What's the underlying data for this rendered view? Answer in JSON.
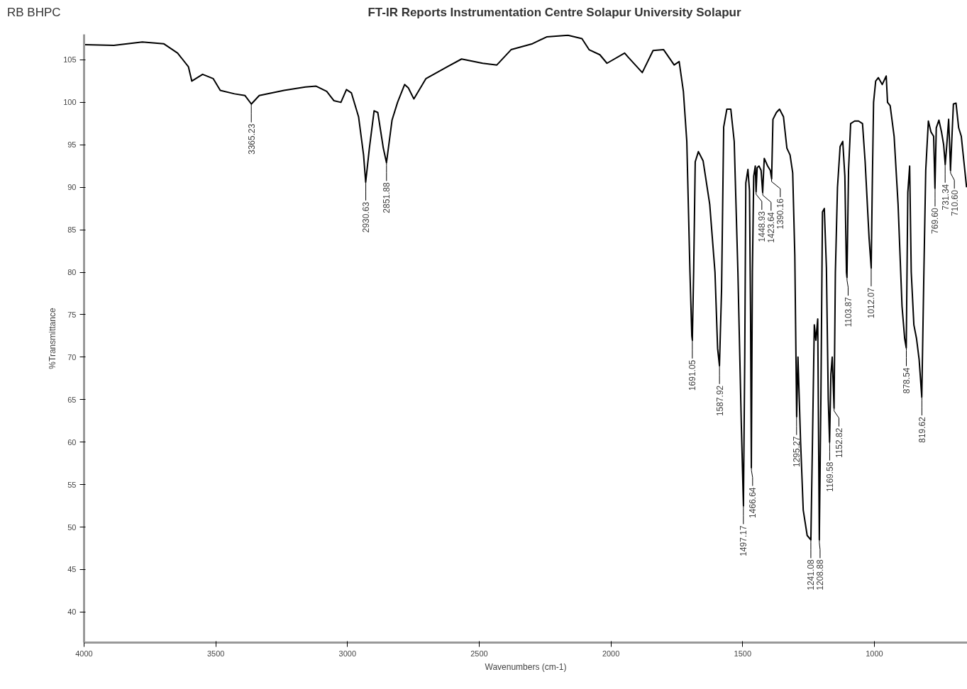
{
  "chart_data": {
    "type": "line",
    "title": "FT-IR Reports Instrumentation Centre Solapur University Solapur",
    "xlabel": "Wavenumbers (cm-1)",
    "ylabel": "%Transmittance",
    "xlim": [
      4000,
      647
    ],
    "ylim": [
      36.4,
      108
    ],
    "xticks": [
      4000,
      3500,
      3000,
      2500,
      2000,
      1500,
      1000
    ],
    "yticks": [
      40,
      45,
      50,
      55,
      60,
      65,
      70,
      75,
      80,
      85,
      90,
      95,
      100,
      105
    ],
    "grid": false,
    "marker": "none",
    "line_style": "solid",
    "series": [
      {
        "color": "#000000",
        "x": [
          4000,
          3887,
          3779,
          3698,
          3645,
          3604,
          3591,
          3550,
          3510,
          3483,
          3429,
          3389,
          3365,
          3335,
          3241,
          3160,
          3119,
          3079,
          3052,
          3025,
          3004,
          2985,
          2958,
          2939,
          2931,
          2917,
          2899,
          2885,
          2864,
          2852,
          2831,
          2810,
          2783,
          2769,
          2748,
          2702,
          2621,
          2567,
          2487,
          2433,
          2379,
          2298,
          2244,
          2163,
          2110,
          2083,
          2042,
          2015,
          1948,
          1934,
          1881,
          1840,
          1800,
          1760,
          1741,
          1725,
          1712,
          1700,
          1693,
          1691,
          1686,
          1680,
          1668,
          1650,
          1625,
          1605,
          1595,
          1588,
          1580,
          1572,
          1560,
          1545,
          1532,
          1518,
          1505,
          1497,
          1492,
          1488,
          1480,
          1474,
          1470,
          1467,
          1463,
          1458,
          1452,
          1449,
          1445,
          1438,
          1430,
          1424,
          1418,
          1405,
          1395,
          1390,
          1385,
          1372,
          1360,
          1345,
          1332,
          1320,
          1310,
          1302,
          1295,
          1290,
          1280,
          1270,
          1255,
          1241,
          1235,
          1228,
          1222,
          1215,
          1209,
          1203,
          1197,
          1190,
          1182,
          1175,
          1170,
          1165,
          1160,
          1153,
          1148,
          1140,
          1130,
          1120,
          1112,
          1106,
          1104,
          1098,
          1090,
          1075,
          1060,
          1045,
          1035,
          1020,
          1012,
          1008,
          1003,
          995,
          985,
          970,
          955,
          950,
          940,
          925,
          910,
          895,
          885,
          879,
          873,
          866,
          860,
          850,
          840,
          830,
          820,
          812,
          805,
          795,
          785,
          775,
          770,
          765,
          755,
          745,
          737,
          731,
          725,
          718,
          712,
          711,
          700,
          690,
          680,
          670,
          660,
          650
        ],
        "values": [
          106.8,
          106.7,
          107.1,
          106.9,
          105.8,
          104.2,
          102.5,
          103.3,
          102.8,
          101.4,
          101.0,
          100.8,
          99.8,
          100.8,
          101.4,
          101.8,
          101.9,
          101.3,
          100.2,
          100.0,
          101.5,
          101.1,
          98.3,
          93.8,
          90.6,
          94.6,
          99.0,
          98.8,
          94.6,
          92.9,
          97.9,
          100.0,
          102.1,
          101.7,
          100.4,
          102.8,
          104.2,
          105.1,
          104.6,
          104.4,
          106.2,
          106.9,
          107.7,
          107.9,
          107.5,
          106.2,
          105.6,
          104.6,
          105.8,
          105.3,
          103.5,
          106.1,
          106.2,
          104.4,
          104.8,
          101.3,
          95.4,
          80,
          72.5,
          72,
          80,
          93.0,
          94.2,
          93.1,
          88.0,
          80,
          71,
          69,
          78,
          97.1,
          99.2,
          99.2,
          95.4,
          80,
          62,
          52.5,
          70,
          90.5,
          92.1,
          89.6,
          75,
          57,
          80,
          91.3,
          92.5,
          89.5,
          92.3,
          92.5,
          92,
          89.4,
          93.4,
          92.5,
          92,
          91,
          98,
          98.8,
          99.2,
          98.3,
          94.6,
          93.8,
          91.7,
          82,
          63,
          70,
          60,
          52,
          49,
          48.5,
          60,
          73.8,
          72,
          74.5,
          48.5,
          65,
          87.1,
          87.5,
          80.5,
          65,
          60,
          68,
          70,
          64,
          80,
          90,
          94.8,
          95.4,
          91.3,
          80,
          79.4,
          92,
          97.5,
          97.8,
          97.8,
          97.5,
          93,
          84,
          80.5,
          90,
          100,
          102.5,
          102.9,
          102.1,
          103.1,
          100,
          99.6,
          96,
          88,
          76,
          72.2,
          71.1,
          89.4,
          92.5,
          80,
          73.8,
          72.2,
          69.7,
          65.3,
          80,
          92,
          97.8,
          96.5,
          96,
          89.9,
          97,
          97.9,
          96.5,
          95,
          92.7,
          95,
          98,
          93,
          92,
          99.8,
          99.9,
          97,
          96,
          93,
          90
        ]
      }
    ],
    "annotations": [
      "RB BHPC",
      {
        "text": "3365.23",
        "x": 3365.23,
        "y": 99.8
      },
      {
        "text": "2930.63",
        "x": 2930.63,
        "y": 90.6
      },
      {
        "text": "2851.88",
        "x": 2851.88,
        "y": 92.9
      },
      {
        "text": "1691.05",
        "x": 1691.05,
        "y": 72
      },
      {
        "text": "1587.92",
        "x": 1587.92,
        "y": 69
      },
      {
        "text": "1497.17",
        "x": 1497.17,
        "y": 52.5
      },
      {
        "text": "1466.64",
        "x": 1466.64,
        "y": 57
      },
      {
        "text": "1448.93",
        "x": 1448.93,
        "y": 89.5
      },
      {
        "text": "1423.64",
        "x": 1423.64,
        "y": 89.4
      },
      {
        "text": "1390.16",
        "x": 1390.16,
        "y": 91
      },
      {
        "text": "1295.27",
        "x": 1295.27,
        "y": 63
      },
      {
        "text": "1241.08",
        "x": 1241.08,
        "y": 48.5
      },
      {
        "text": "1208.88",
        "x": 1208.88,
        "y": 48.5
      },
      {
        "text": "1169.58",
        "x": 1169.58,
        "y": 60
      },
      {
        "text": "1152.82",
        "x": 1152.82,
        "y": 64
      },
      {
        "text": "1103.87",
        "x": 1103.87,
        "y": 79.4
      },
      {
        "text": "1012.07",
        "x": 1012.07,
        "y": 80.5
      },
      {
        "text": "878.54",
        "x": 878.54,
        "y": 71.1
      },
      {
        "text": "819.62",
        "x": 819.62,
        "y": 65.3
      },
      {
        "text": "769.60",
        "x": 769.6,
        "y": 89.9
      },
      {
        "text": "731.34",
        "x": 731.34,
        "y": 92.7
      },
      {
        "text": "710.60",
        "x": 710.6,
        "y": 92
      }
    ]
  }
}
